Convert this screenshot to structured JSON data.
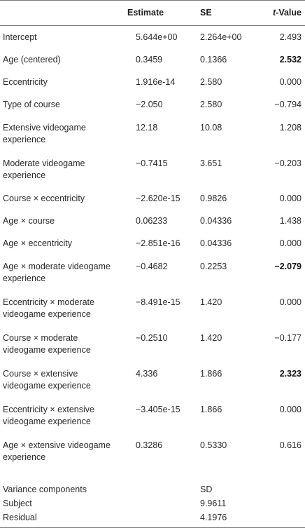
{
  "headers": {
    "label": "",
    "estimate": "Estimate",
    "se": "SE",
    "t_prefix": "t",
    "t_suffix": "-Value"
  },
  "rows": [
    {
      "label": "Intercept",
      "estimate": "5.644e+00",
      "se": "2.264e+00",
      "t": "2.493",
      "t_bold": false
    },
    {
      "label": "Age (centered)",
      "estimate": "0.3459",
      "se": "0.1366",
      "t": "2.532",
      "t_bold": true
    },
    {
      "label": "Eccentricity",
      "estimate": "1.916e-14",
      "se": "2.580",
      "t": "0.000",
      "t_bold": false
    },
    {
      "label": "Type of course",
      "estimate": "−2.050",
      "se": "2.580",
      "t": "−0.794",
      "t_bold": false
    },
    {
      "label": "Extensive videogame experience",
      "estimate": "12.18",
      "se": "10.08",
      "t": "1.208",
      "t_bold": false
    },
    {
      "label": "Moderate videogame experience",
      "estimate": "−0.7415",
      "se": "3.651",
      "t": "−0.203",
      "t_bold": false
    },
    {
      "label": "Course × eccentricity",
      "estimate": "−2.620e-15",
      "se": "0.9826",
      "t": "0.000",
      "t_bold": false
    },
    {
      "label": "Age × course",
      "estimate": "0.06233",
      "se": "0.04336",
      "t": "1.438",
      "t_bold": false
    },
    {
      "label": "Age × eccentricity",
      "estimate": "−2.851e-16",
      "se": "0.04336",
      "t": "0.000",
      "t_bold": false
    },
    {
      "label": "Age × moderate videogame experience",
      "estimate": "−0.4682",
      "se": "0.2253",
      "t": "−2.079",
      "t_bold": true
    },
    {
      "label": "Eccentricity × moderate videogame experience",
      "estimate": "−8.491e-15",
      "se": "1.420",
      "t": "0.000",
      "t_bold": false
    },
    {
      "label": "Course × moderate videogame experience",
      "estimate": "−0.2510",
      "se": "1.420",
      "t": "−0.177",
      "t_bold": false
    },
    {
      "label": "Course × extensive videogame experience",
      "estimate": "4.336",
      "se": "1.866",
      "t": "2.323",
      "t_bold": true
    },
    {
      "label": "Eccentricity × extensive videogame experience",
      "estimate": "−3.405e-15",
      "se": "1.866",
      "t": "0.000",
      "t_bold": false
    },
    {
      "label": "Age × extensive videogame experience",
      "estimate": "0.3286",
      "se": "0.5330",
      "t": "0.616",
      "t_bold": false
    }
  ],
  "variance": {
    "header_label": "Variance components",
    "header_sd": "SD",
    "items": [
      {
        "label": "Subject",
        "sd": "9.9611"
      },
      {
        "label": "Residual",
        "sd": "4.1976"
      }
    ]
  }
}
